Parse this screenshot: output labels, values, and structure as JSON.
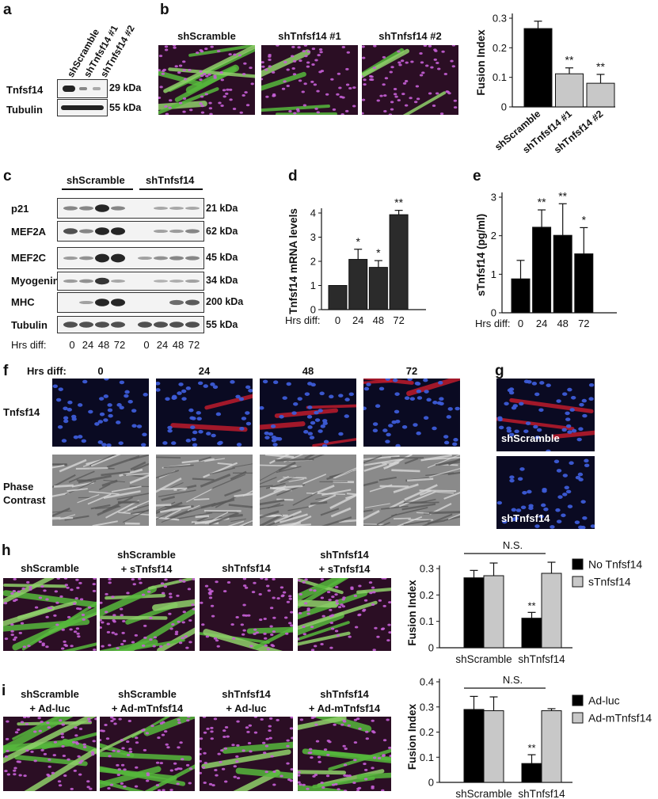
{
  "panels": {
    "a": {
      "letter": "a",
      "columns": [
        "shScramble",
        "shTnfsf14 #1",
        "shTnfsf14 #2"
      ],
      "rows": [
        {
          "name": "Tnfsf14",
          "kda": "29 kDa"
        },
        {
          "name": "Tubulin",
          "kda": "55 kDa"
        }
      ]
    },
    "b": {
      "letter": "b",
      "images": [
        "shScramble",
        "shTnfsf14 #1",
        "shTnfsf14 #2"
      ]
    },
    "c": {
      "letter": "c",
      "groups": [
        "shScramble",
        "shTnfsf14"
      ],
      "rows": [
        {
          "name": "p21",
          "kda": "21 kDa"
        },
        {
          "name": "MEF2A",
          "kda": "62 kDa"
        },
        {
          "name": "MEF2C",
          "kda": "45 kDa"
        },
        {
          "name": "Myogenin",
          "kda": "34 kDa"
        },
        {
          "name": "MHC",
          "kda": "200 kDa"
        },
        {
          "name": "Tubulin",
          "kda": "55 kDa"
        }
      ],
      "hrs_label": "Hrs diff:",
      "hrs": [
        "0",
        "24",
        "48",
        "72",
        "0",
        "24",
        "48",
        "72"
      ]
    },
    "d": {
      "letter": "d"
    },
    "e": {
      "letter": "e"
    },
    "f": {
      "letter": "f",
      "hrs_label": "Hrs diff:",
      "columns": [
        "0",
        "24",
        "48",
        "72"
      ],
      "rows": [
        "Tnfsf14",
        "Phase\nContrast"
      ]
    },
    "g": {
      "letter": "g",
      "images": [
        "shScramble",
        "shTnfsf14"
      ]
    },
    "h": {
      "letter": "h",
      "images": [
        "shScramble",
        "shScramble\n+ sTnfsf14",
        "shTnfsf14",
        "shTnfsf14\n+ sTnfsf14"
      ]
    },
    "i": {
      "letter": "i",
      "images": [
        "shScramble\n+ Ad-luc",
        "shScramble\n+ Ad-mTnfsf14",
        "shTnfsf14\n+ Ad-luc",
        "shTnfsf14\n+ Ad-mTnfsf14"
      ]
    }
  },
  "chart_data": [
    {
      "id": "b",
      "type": "bar",
      "ylabel": "Fusion Index",
      "categories": [
        "shScramble",
        "shTnfsf14 #1",
        "shTnfsf14 #2"
      ],
      "values": [
        0.265,
        0.112,
        0.08
      ],
      "errors": [
        0.025,
        0.02,
        0.03
      ],
      "sig": [
        "",
        "**",
        "**"
      ],
      "ylim": [
        0,
        0.3
      ],
      "yticks": [
        "0",
        "0.1",
        "0.2",
        "0.3"
      ],
      "colors": [
        "#000000",
        "#c8c8c8",
        "#c8c8c8"
      ]
    },
    {
      "id": "d",
      "type": "bar",
      "ylabel": "Tnfsf14 mRNA levels",
      "xlabel": "Hrs diff:",
      "categories": [
        "0",
        "24",
        "48",
        "72"
      ],
      "values": [
        1.0,
        2.08,
        1.75,
        3.93
      ],
      "errors": [
        0,
        0.42,
        0.28,
        0.18
      ],
      "sig": [
        "",
        "*",
        "*",
        "**"
      ],
      "ylim": [
        0,
        4
      ],
      "yticks": [
        "0",
        "1",
        "2",
        "3",
        "4"
      ],
      "colors": [
        "#2b2b2b",
        "#2b2b2b",
        "#2b2b2b",
        "#2b2b2b"
      ]
    },
    {
      "id": "e",
      "type": "bar",
      "ylabel": "sTnfsf14 (pg/ml)",
      "xlabel": "Hrs diff:",
      "categories": [
        "0",
        "24",
        "48",
        "72"
      ],
      "values": [
        0.88,
        2.22,
        2.01,
        1.53
      ],
      "errors": [
        0.48,
        0.45,
        0.82,
        0.68
      ],
      "sig": [
        "",
        "**",
        "**",
        "*"
      ],
      "ylim": [
        0,
        3
      ],
      "yticks": [
        "0",
        "1",
        "2",
        "3"
      ],
      "colors": [
        "#000000",
        "#000000",
        "#000000",
        "#000000"
      ]
    },
    {
      "id": "h",
      "type": "bar",
      "ylabel": "Fusion Index",
      "categories": [
        "shScramble",
        "shTnfsf14"
      ],
      "series": [
        {
          "name": "No Tnfsf14",
          "values": [
            0.265,
            0.112
          ],
          "errors": [
            0.028,
            0.022
          ],
          "sig": [
            "",
            "**"
          ],
          "color": "#000000"
        },
        {
          "name": "sTnfsf14",
          "values": [
            0.273,
            0.282
          ],
          "errors": [
            0.048,
            0.042
          ],
          "sig": [
            "",
            ""
          ],
          "color": "#c8c8c8"
        }
      ],
      "ylim": [
        0,
        0.3
      ],
      "yticks": [
        "0",
        "0.1",
        "0.2",
        "0.3"
      ],
      "annotation": "N.S."
    },
    {
      "id": "i",
      "type": "bar",
      "ylabel": "Fusion Index",
      "categories": [
        "shScramble",
        "shTnfsf14"
      ],
      "series": [
        {
          "name": "Ad-luc",
          "values": [
            0.29,
            0.075
          ],
          "errors": [
            0.052,
            0.035
          ],
          "sig": [
            "",
            "**"
          ],
          "color": "#000000"
        },
        {
          "name": "Ad-mTnfsf14",
          "values": [
            0.285,
            0.285
          ],
          "errors": [
            0.055,
            0.008
          ],
          "sig": [
            "",
            ""
          ],
          "color": "#c8c8c8"
        }
      ],
      "ylim": [
        0,
        0.4
      ],
      "yticks": [
        "0",
        "0.1",
        "0.2",
        "0.3",
        "0.4"
      ],
      "annotation": "N.S."
    }
  ]
}
